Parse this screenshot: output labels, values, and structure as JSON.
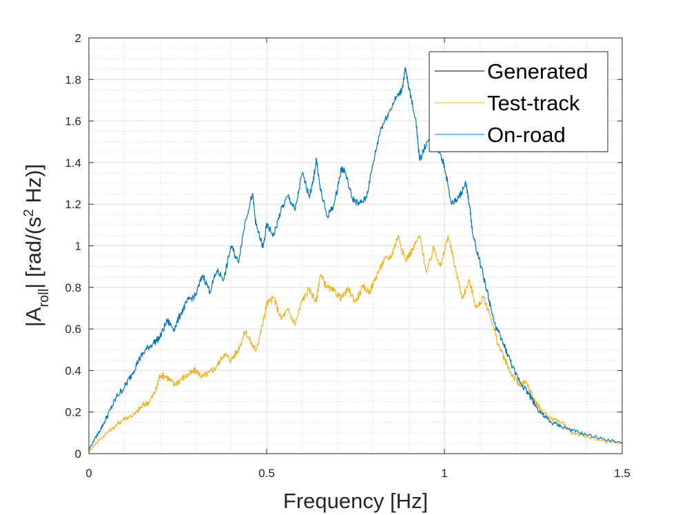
{
  "chart_data": {
    "type": "line",
    "title": "",
    "xlabel": "Frequency [Hz]",
    "ylabel": {
      "main": "|A",
      "subscript": "roll",
      "rest": "| [rad/(s",
      "superscript": "2",
      "end": " Hz)]"
    },
    "xlim": [
      0,
      1.5
    ],
    "ylim": [
      0,
      2
    ],
    "xticks": [
      0,
      0.5,
      1,
      1.5
    ],
    "xtick_labels": [
      "0",
      "0.5",
      "1",
      "1.5"
    ],
    "yticks": [
      0,
      0.2,
      0.4,
      0.6,
      0.8,
      1,
      1.2,
      1.4,
      1.6,
      1.8,
      2
    ],
    "ytick_labels": [
      "0",
      "0.2",
      "0.4",
      "0.6",
      "0.8",
      "1",
      "1.2",
      "1.4",
      "1.6",
      "1.8",
      "2"
    ],
    "grid": true,
    "minor_grid": true,
    "legend_position": "top-right",
    "series": [
      {
        "name": "Generated",
        "color": "#000000",
        "x": [],
        "y": []
      },
      {
        "name": "Test-track",
        "color": "#EDB120",
        "x": [
          0,
          0.02,
          0.05,
          0.08,
          0.1,
          0.13,
          0.15,
          0.17,
          0.19,
          0.2,
          0.22,
          0.24,
          0.26,
          0.28,
          0.3,
          0.32,
          0.34,
          0.36,
          0.38,
          0.4,
          0.42,
          0.44,
          0.46,
          0.47,
          0.49,
          0.5,
          0.52,
          0.54,
          0.56,
          0.58,
          0.6,
          0.62,
          0.64,
          0.65,
          0.67,
          0.69,
          0.71,
          0.73,
          0.75,
          0.77,
          0.79,
          0.81,
          0.83,
          0.85,
          0.87,
          0.89,
          0.91,
          0.93,
          0.95,
          0.97,
          0.99,
          1.01,
          1.03,
          1.05,
          1.07,
          1.09,
          1.11,
          1.13,
          1.15,
          1.17,
          1.19,
          1.21,
          1.23,
          1.25,
          1.27,
          1.3,
          1.33,
          1.36,
          1.4,
          1.45,
          1.5
        ],
        "y": [
          0.01,
          0.05,
          0.1,
          0.14,
          0.17,
          0.19,
          0.23,
          0.25,
          0.31,
          0.38,
          0.37,
          0.33,
          0.36,
          0.38,
          0.4,
          0.37,
          0.39,
          0.42,
          0.48,
          0.45,
          0.5,
          0.59,
          0.52,
          0.5,
          0.63,
          0.72,
          0.75,
          0.65,
          0.69,
          0.62,
          0.74,
          0.79,
          0.73,
          0.86,
          0.8,
          0.78,
          0.75,
          0.79,
          0.73,
          0.8,
          0.78,
          0.86,
          0.93,
          0.95,
          1.05,
          0.93,
          0.98,
          1.05,
          0.87,
          0.99,
          0.9,
          1.05,
          0.9,
          0.75,
          0.83,
          0.7,
          0.75,
          0.66,
          0.53,
          0.45,
          0.38,
          0.33,
          0.34,
          0.27,
          0.21,
          0.17,
          0.15,
          0.1,
          0.08,
          0.06,
          0.05
        ]
      },
      {
        "name": "On-road",
        "color": "#0072BD",
        "x": [
          0,
          0.02,
          0.04,
          0.06,
          0.08,
          0.1,
          0.12,
          0.14,
          0.16,
          0.18,
          0.2,
          0.22,
          0.24,
          0.26,
          0.28,
          0.3,
          0.32,
          0.34,
          0.36,
          0.38,
          0.4,
          0.42,
          0.44,
          0.46,
          0.47,
          0.49,
          0.5,
          0.52,
          0.54,
          0.56,
          0.58,
          0.6,
          0.62,
          0.63,
          0.64,
          0.65,
          0.67,
          0.69,
          0.71,
          0.72,
          0.74,
          0.76,
          0.78,
          0.8,
          0.82,
          0.84,
          0.86,
          0.88,
          0.89,
          0.9,
          0.92,
          0.93,
          0.95,
          0.97,
          0.99,
          1.0,
          1.02,
          1.04,
          1.06,
          1.07,
          1.08,
          1.1,
          1.12,
          1.14,
          1.16,
          1.18,
          1.2,
          1.22,
          1.24,
          1.26,
          1.28,
          1.3,
          1.33,
          1.36,
          1.4,
          1.45,
          1.5
        ],
        "y": [
          0.02,
          0.08,
          0.14,
          0.21,
          0.28,
          0.32,
          0.38,
          0.45,
          0.5,
          0.53,
          0.56,
          0.64,
          0.6,
          0.68,
          0.74,
          0.76,
          0.86,
          0.78,
          0.88,
          0.84,
          1.0,
          0.92,
          1.12,
          1.25,
          1.1,
          0.99,
          1.1,
          1.05,
          1.17,
          1.24,
          1.17,
          1.35,
          1.24,
          1.3,
          1.42,
          1.28,
          1.14,
          1.2,
          1.37,
          1.36,
          1.23,
          1.2,
          1.23,
          1.4,
          1.56,
          1.63,
          1.7,
          1.75,
          1.85,
          1.76,
          1.6,
          1.41,
          1.5,
          1.5,
          1.44,
          1.38,
          1.2,
          1.23,
          1.3,
          1.2,
          1.05,
          0.92,
          0.78,
          0.63,
          0.55,
          0.47,
          0.38,
          0.33,
          0.28,
          0.22,
          0.18,
          0.15,
          0.13,
          0.11,
          0.09,
          0.07,
          0.05
        ]
      }
    ]
  }
}
